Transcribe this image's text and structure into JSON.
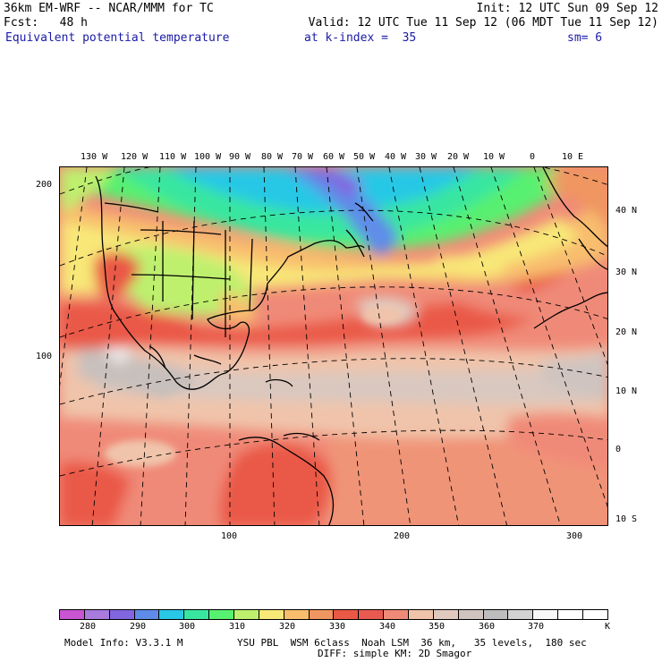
{
  "header": {
    "line1_left": "36km EM-WRF -- NCAR/MMM for TC",
    "line1_right": "Init: 12 UTC Sun 09 Sep 12",
    "line2_left": "Fcst:   48 h",
    "line2_right": "Valid: 12 UTC Tue 11 Sep 12 (06 MDT Tue 11 Sep 12)",
    "field_name": "Equivalent potential temperature",
    "level": "at k-index =  35",
    "smoothing": "sm= 6"
  },
  "map": {
    "top_longitude_labels": [
      "130 W",
      "120 W",
      "110 W",
      "100 W",
      "90 W",
      "80 W",
      "70 W",
      "60 W",
      "50 W",
      "40 W",
      "30 W",
      "20 W",
      "10 W",
      "0",
      "10 E"
    ],
    "right_latitude_labels": [
      "40 N",
      "30 N",
      "20 N",
      "10 N",
      "0",
      "10 S"
    ],
    "left_grid_labels": [
      "200",
      "100"
    ],
    "bottom_grid_labels": [
      "100",
      "200",
      "300"
    ]
  },
  "colorbar": {
    "colors": [
      "#c855d2",
      "#a87bdc",
      "#8266e0",
      "#5e8ce8",
      "#28c8e6",
      "#38e6a0",
      "#58f070",
      "#bef06e",
      "#f8e878",
      "#f8be6e",
      "#f09660",
      "#ea5846",
      "#e85a50",
      "#f08a78",
      "#f0c4aa",
      "#e0cac0",
      "#cfc4c0",
      "#bdbdbd",
      "#d2d2d2",
      "#f8f8f8",
      "#ffffff",
      "#ffffff"
    ],
    "tick_labels": [
      "280",
      "290",
      "300",
      "310",
      "320",
      "330",
      "340",
      "350",
      "360",
      "370"
    ],
    "unit": "K"
  },
  "footer": {
    "model_info": "Model Info: V3.3.1 M",
    "physics_line1": "YSU PBL  WSM 6class  Noah LSM  36 km,   35 levels,  180 sec",
    "physics_line2": "DIFF: simple KM: 2D Smagor"
  }
}
